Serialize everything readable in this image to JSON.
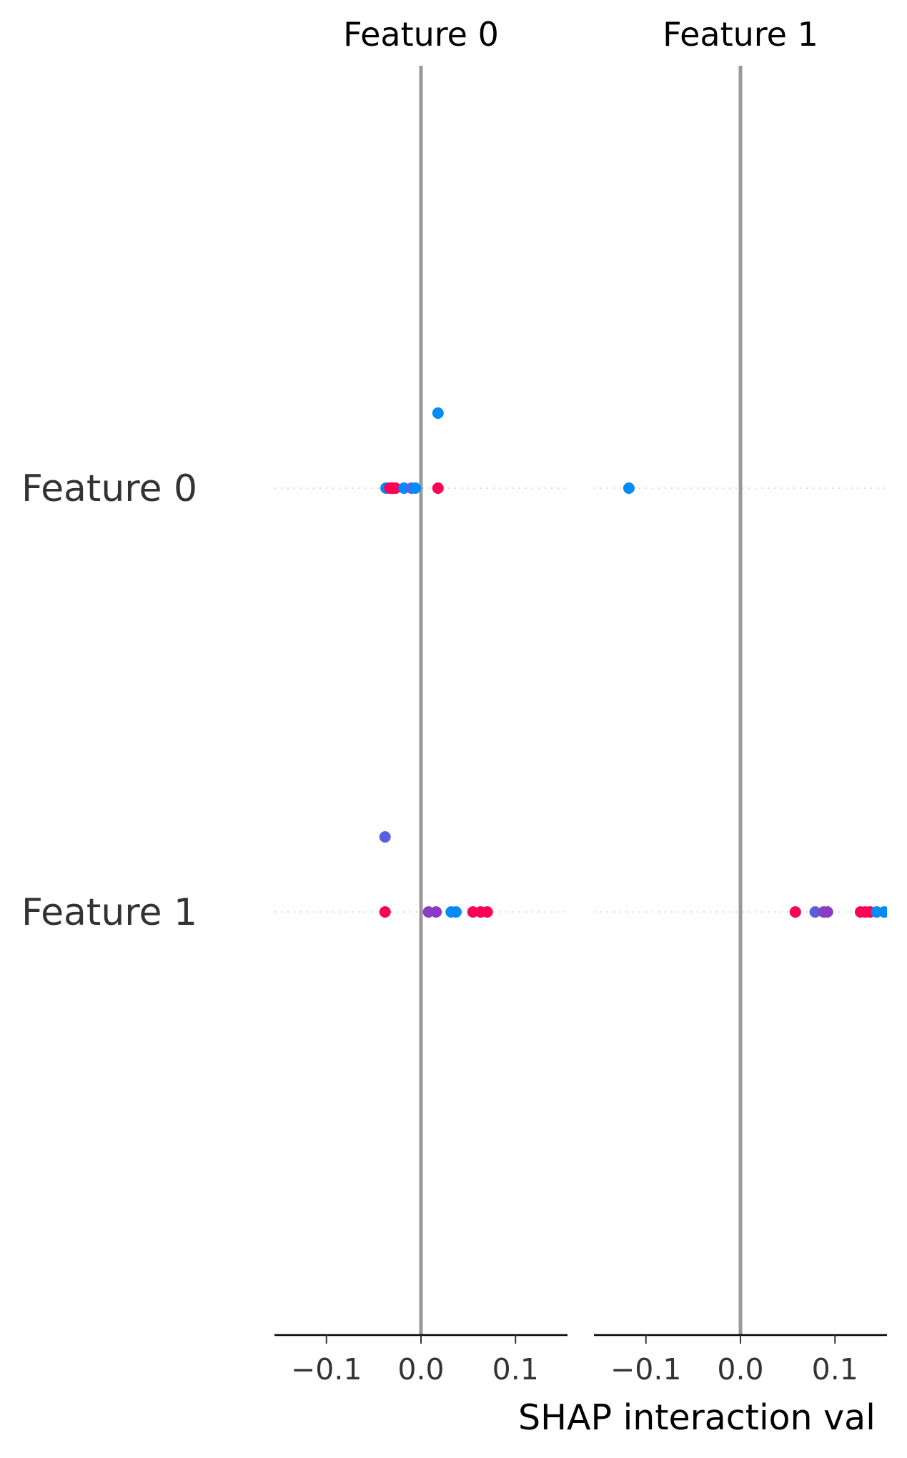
{
  "chart_data": {
    "type": "scatter",
    "xlabel": "SHAP interaction val",
    "row_features": [
      "Feature 0",
      "Feature 1"
    ],
    "xlim": [
      -0.155,
      0.155
    ],
    "xticks": [
      -0.1,
      0.0,
      0.1
    ],
    "xtick_labels": [
      "−0.1",
      "0.0",
      "0.1"
    ],
    "zero_line": true,
    "grid": false,
    "colors": {
      "low": "#008bfb",
      "high": "#ff0052",
      "mid": "#5a5fe0",
      "mid2": "#8a3cc4",
      "zero_line": "#999999",
      "row_dots": "#cccccc"
    },
    "panels": [
      {
        "title": "Feature 0",
        "rows": [
          {
            "feature": "Feature 0",
            "points": [
              {
                "x": -0.037,
                "y": 0,
                "color": "#008bfb"
              },
              {
                "x": -0.033,
                "y": 0,
                "color": "#ff0052"
              },
              {
                "x": -0.03,
                "y": 0,
                "color": "#ff0052"
              },
              {
                "x": -0.027,
                "y": 0,
                "color": "#ff0052"
              },
              {
                "x": -0.018,
                "y": 0,
                "color": "#008bfb"
              },
              {
                "x": -0.01,
                "y": 0,
                "color": "#5a5fe0"
              },
              {
                "x": -0.006,
                "y": 0,
                "color": "#008bfb"
              },
              {
                "x": 0.018,
                "y": 0,
                "color": "#ff0052"
              },
              {
                "x": 0.018,
                "y": 1,
                "color": "#008bfb"
              }
            ]
          },
          {
            "feature": "Feature 1",
            "points": [
              {
                "x": -0.038,
                "y": 0,
                "color": "#ff0052"
              },
              {
                "x": -0.038,
                "y": 1,
                "color": "#5a5fe0"
              },
              {
                "x": 0.008,
                "y": 0,
                "color": "#8a3cc4"
              },
              {
                "x": 0.016,
                "y": 0,
                "color": "#8a3cc4"
              },
              {
                "x": 0.032,
                "y": 0,
                "color": "#008bfb"
              },
              {
                "x": 0.037,
                "y": 0,
                "color": "#008bfb"
              },
              {
                "x": 0.055,
                "y": 0,
                "color": "#ff0052"
              },
              {
                "x": 0.063,
                "y": 0,
                "color": "#ff0052"
              },
              {
                "x": 0.07,
                "y": 0,
                "color": "#ff0052"
              }
            ]
          }
        ]
      },
      {
        "title": "Feature 1",
        "rows": [
          {
            "feature": "Feature 0",
            "points": [
              {
                "x": -0.118,
                "y": 0,
                "color": "#008bfb"
              }
            ]
          },
          {
            "feature": "Feature 1",
            "points": [
              {
                "x": 0.058,
                "y": 0,
                "color": "#ff0052"
              },
              {
                "x": 0.079,
                "y": 0,
                "color": "#5a5fe0"
              },
              {
                "x": 0.088,
                "y": 0,
                "color": "#8a3cc4"
              },
              {
                "x": 0.092,
                "y": 0,
                "color": "#8a3cc4"
              },
              {
                "x": 0.127,
                "y": 0,
                "color": "#ff0052"
              },
              {
                "x": 0.132,
                "y": 0,
                "color": "#ff0052"
              },
              {
                "x": 0.137,
                "y": 0,
                "color": "#ff0052"
              },
              {
                "x": 0.144,
                "y": 0,
                "color": "#008bfb"
              },
              {
                "x": 0.152,
                "y": 0,
                "color": "#008bfb"
              }
            ]
          }
        ]
      }
    ]
  }
}
